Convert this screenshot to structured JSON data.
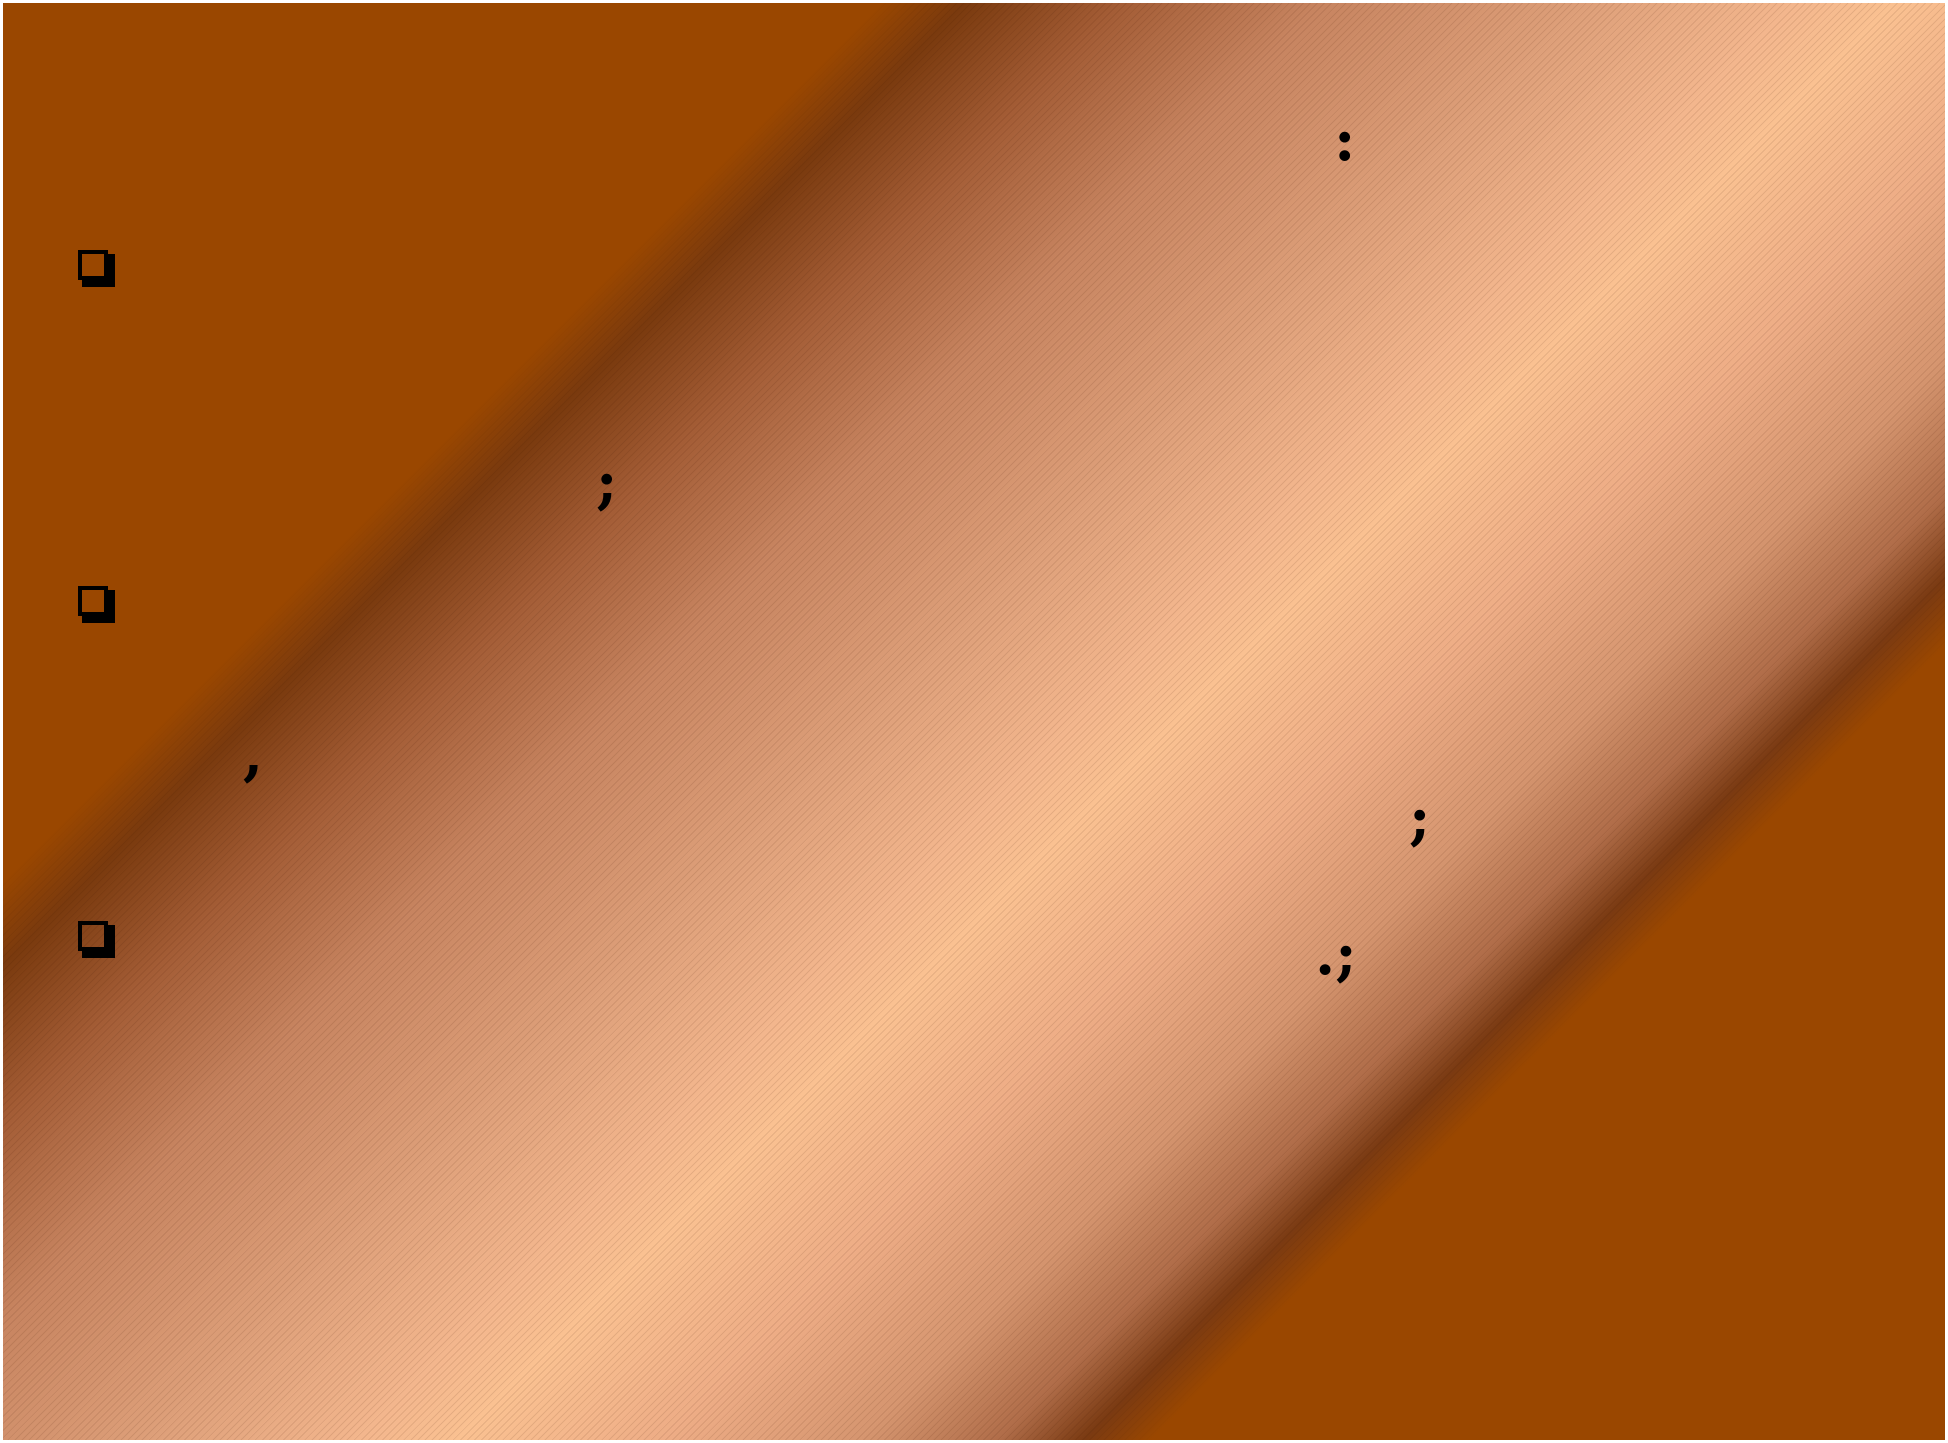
{
  "slide": {
    "colors": {
      "background": "#9a4700",
      "band_highlight": "#fac191",
      "band_edge": "#7a3a0e",
      "text": "#000000"
    },
    "bullets": [
      {
        "icon": "square-bullet-icon"
      },
      {
        "icon": "square-bullet-icon"
      },
      {
        "icon": "square-bullet-icon"
      }
    ],
    "punctuation": [
      {
        "text": ":"
      },
      {
        "text": ";"
      },
      {
        "text": ","
      },
      {
        "text": ";"
      },
      {
        "text": ".;"
      }
    ]
  }
}
